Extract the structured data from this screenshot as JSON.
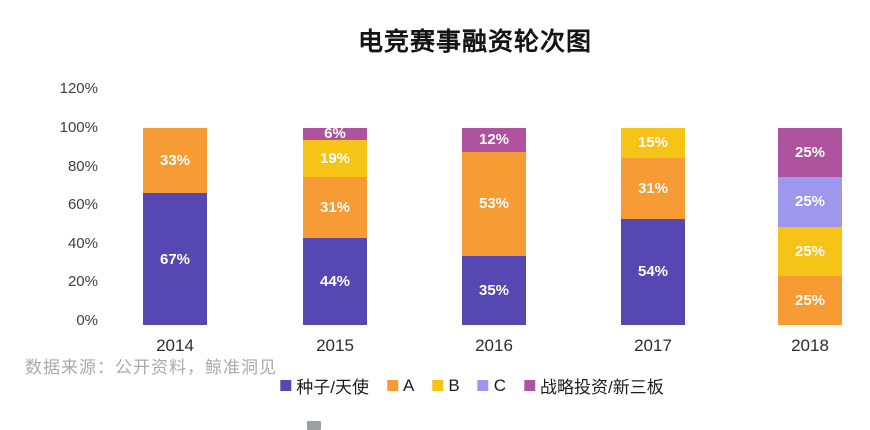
{
  "title": "电竞赛事融资轮次图",
  "source_note": "数据来源：公开资料，鲸准洞见",
  "chart_data": {
    "type": "bar",
    "stacked": true,
    "title": "电竞赛事融资轮次图",
    "categories": [
      "2014",
      "2015",
      "2016",
      "2017",
      "2018"
    ],
    "series": [
      {
        "name": "种子/天使",
        "color": "#5648b3",
        "values": [
          67,
          44,
          35,
          54,
          0
        ]
      },
      {
        "name": "A",
        "color": "#f79b35",
        "values": [
          33,
          31,
          53,
          31,
          25
        ]
      },
      {
        "name": "B",
        "color": "#f6c417",
        "values": [
          0,
          19,
          0,
          15,
          25
        ]
      },
      {
        "name": "C",
        "color": "#9d97ee",
        "values": [
          0,
          0,
          0,
          0,
          25
        ]
      },
      {
        "name": "战略投资/新三板",
        "color": "#b0539f",
        "values": [
          0,
          6,
          12,
          0,
          25
        ]
      }
    ],
    "value_label_format": "{v}%",
    "y_ticks": [
      "120%",
      "100%",
      "80%",
      "60%",
      "40%",
      "20%",
      "0%"
    ],
    "ylim": [
      0,
      120
    ],
    "unit": "%",
    "grid": false,
    "legend_position": "bottom"
  }
}
